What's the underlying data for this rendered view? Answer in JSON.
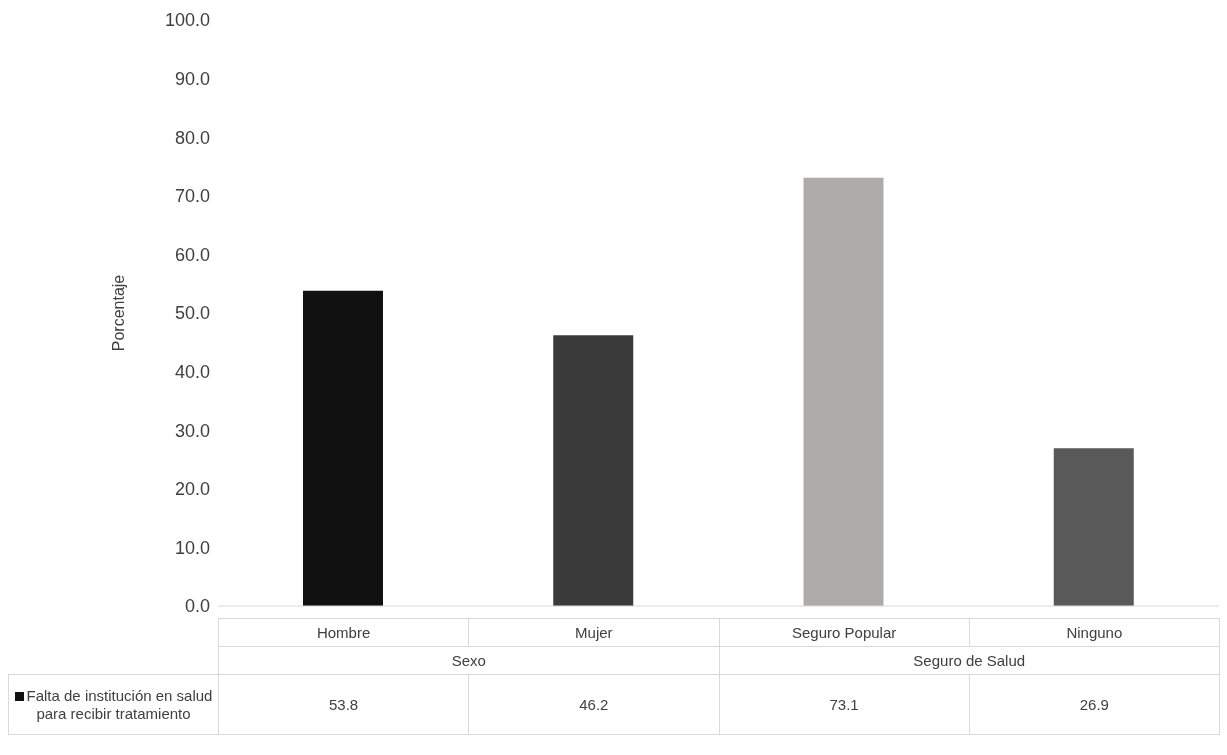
{
  "chart_data": {
    "type": "bar",
    "ylabel": "Porcentaje",
    "categories": [
      "Hombre",
      "Mujer",
      "Seguro Popular",
      "Ninguno"
    ],
    "series": [
      {
        "name": "Falta de institución en salud para recibir tratamiento",
        "values": [
          53.8,
          46.2,
          73.1,
          26.9
        ],
        "colors": [
          "#111111",
          "#3a3a3a",
          "#afabab",
          "#595959"
        ]
      }
    ],
    "ylim": [
      0,
      100
    ],
    "yticks": [
      {
        "value": 0,
        "label": "0.0"
      },
      {
        "value": 10,
        "label": "10.0"
      },
      {
        "value": 20,
        "label": "20.0"
      },
      {
        "value": 30,
        "label": "30.0"
      },
      {
        "value": 40,
        "label": "40.0"
      },
      {
        "value": 50,
        "label": "50.0"
      },
      {
        "value": 60,
        "label": "60.0"
      },
      {
        "value": 70,
        "label": "70.0"
      },
      {
        "value": 80,
        "label": "80.0"
      },
      {
        "value": 90,
        "label": "90.0"
      },
      {
        "value": 100,
        "label": "100.0"
      }
    ],
    "annotations": [
      "Sexo",
      "Seguro de Salud"
    ],
    "data_labels": true,
    "grid": false,
    "legend": "bottom left"
  }
}
